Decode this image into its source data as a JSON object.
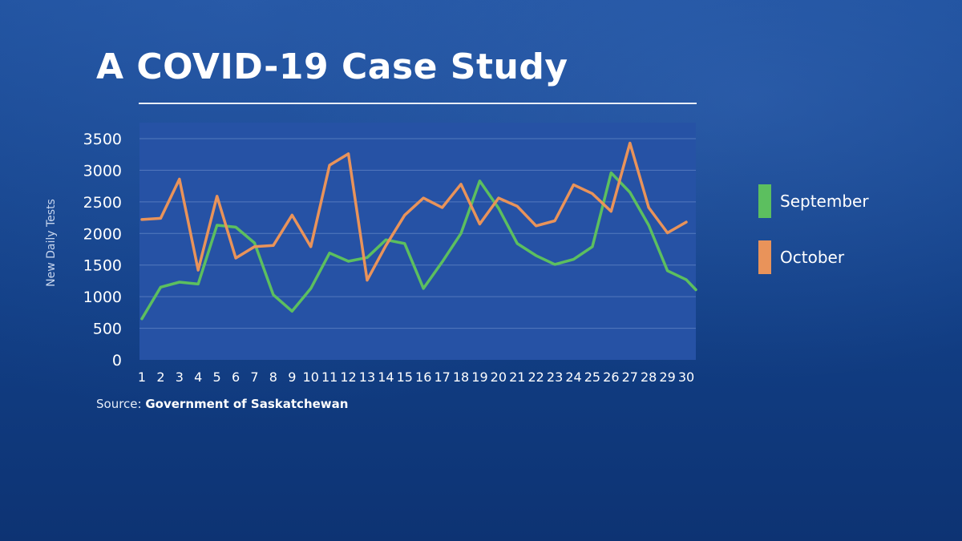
{
  "title": "A COVID-19 Case Study",
  "source": {
    "prefix": "Source:",
    "name": "Government of Saskatchewan"
  },
  "chart_data": {
    "type": "line",
    "ylabel": "New Daily Tests",
    "xlabel": "",
    "ylim": [
      0,
      3500
    ],
    "yticks": [
      0,
      500,
      1000,
      1500,
      2000,
      2500,
      3000,
      3500
    ],
    "grid": true,
    "legend_position": "right",
    "x": [
      1,
      2,
      3,
      4,
      5,
      6,
      7,
      8,
      9,
      10,
      11,
      12,
      13,
      14,
      15,
      16,
      17,
      18,
      19,
      20,
      21,
      22,
      23,
      24,
      25,
      26,
      27,
      28,
      29,
      30
    ],
    "series": [
      {
        "name": "September",
        "color": "#5cbf5f",
        "values": [
          650,
          1150,
          1230,
          1200,
          2130,
          2100,
          1850,
          1030,
          770,
          1130,
          1690,
          1560,
          1620,
          1900,
          1840,
          1130,
          1550,
          2000,
          2830,
          2400,
          1840,
          1650,
          1510,
          1590,
          1790,
          2960,
          2650,
          2130,
          1410,
          1270
        ]
      },
      {
        "name": "October",
        "color": "#e9935a",
        "values": [
          2220,
          2240,
          2860,
          1420,
          2590,
          1610,
          1790,
          1810,
          2290,
          1790,
          3080,
          3260,
          1260,
          1810,
          2290,
          2560,
          2410,
          2780,
          2150,
          2560,
          2430,
          2120,
          2200,
          2770,
          2630,
          2350,
          3430,
          2410,
          2010,
          2180
        ]
      }
    ],
    "note": "September series extends beyond day 30 to ~1110 at chart edge"
  }
}
